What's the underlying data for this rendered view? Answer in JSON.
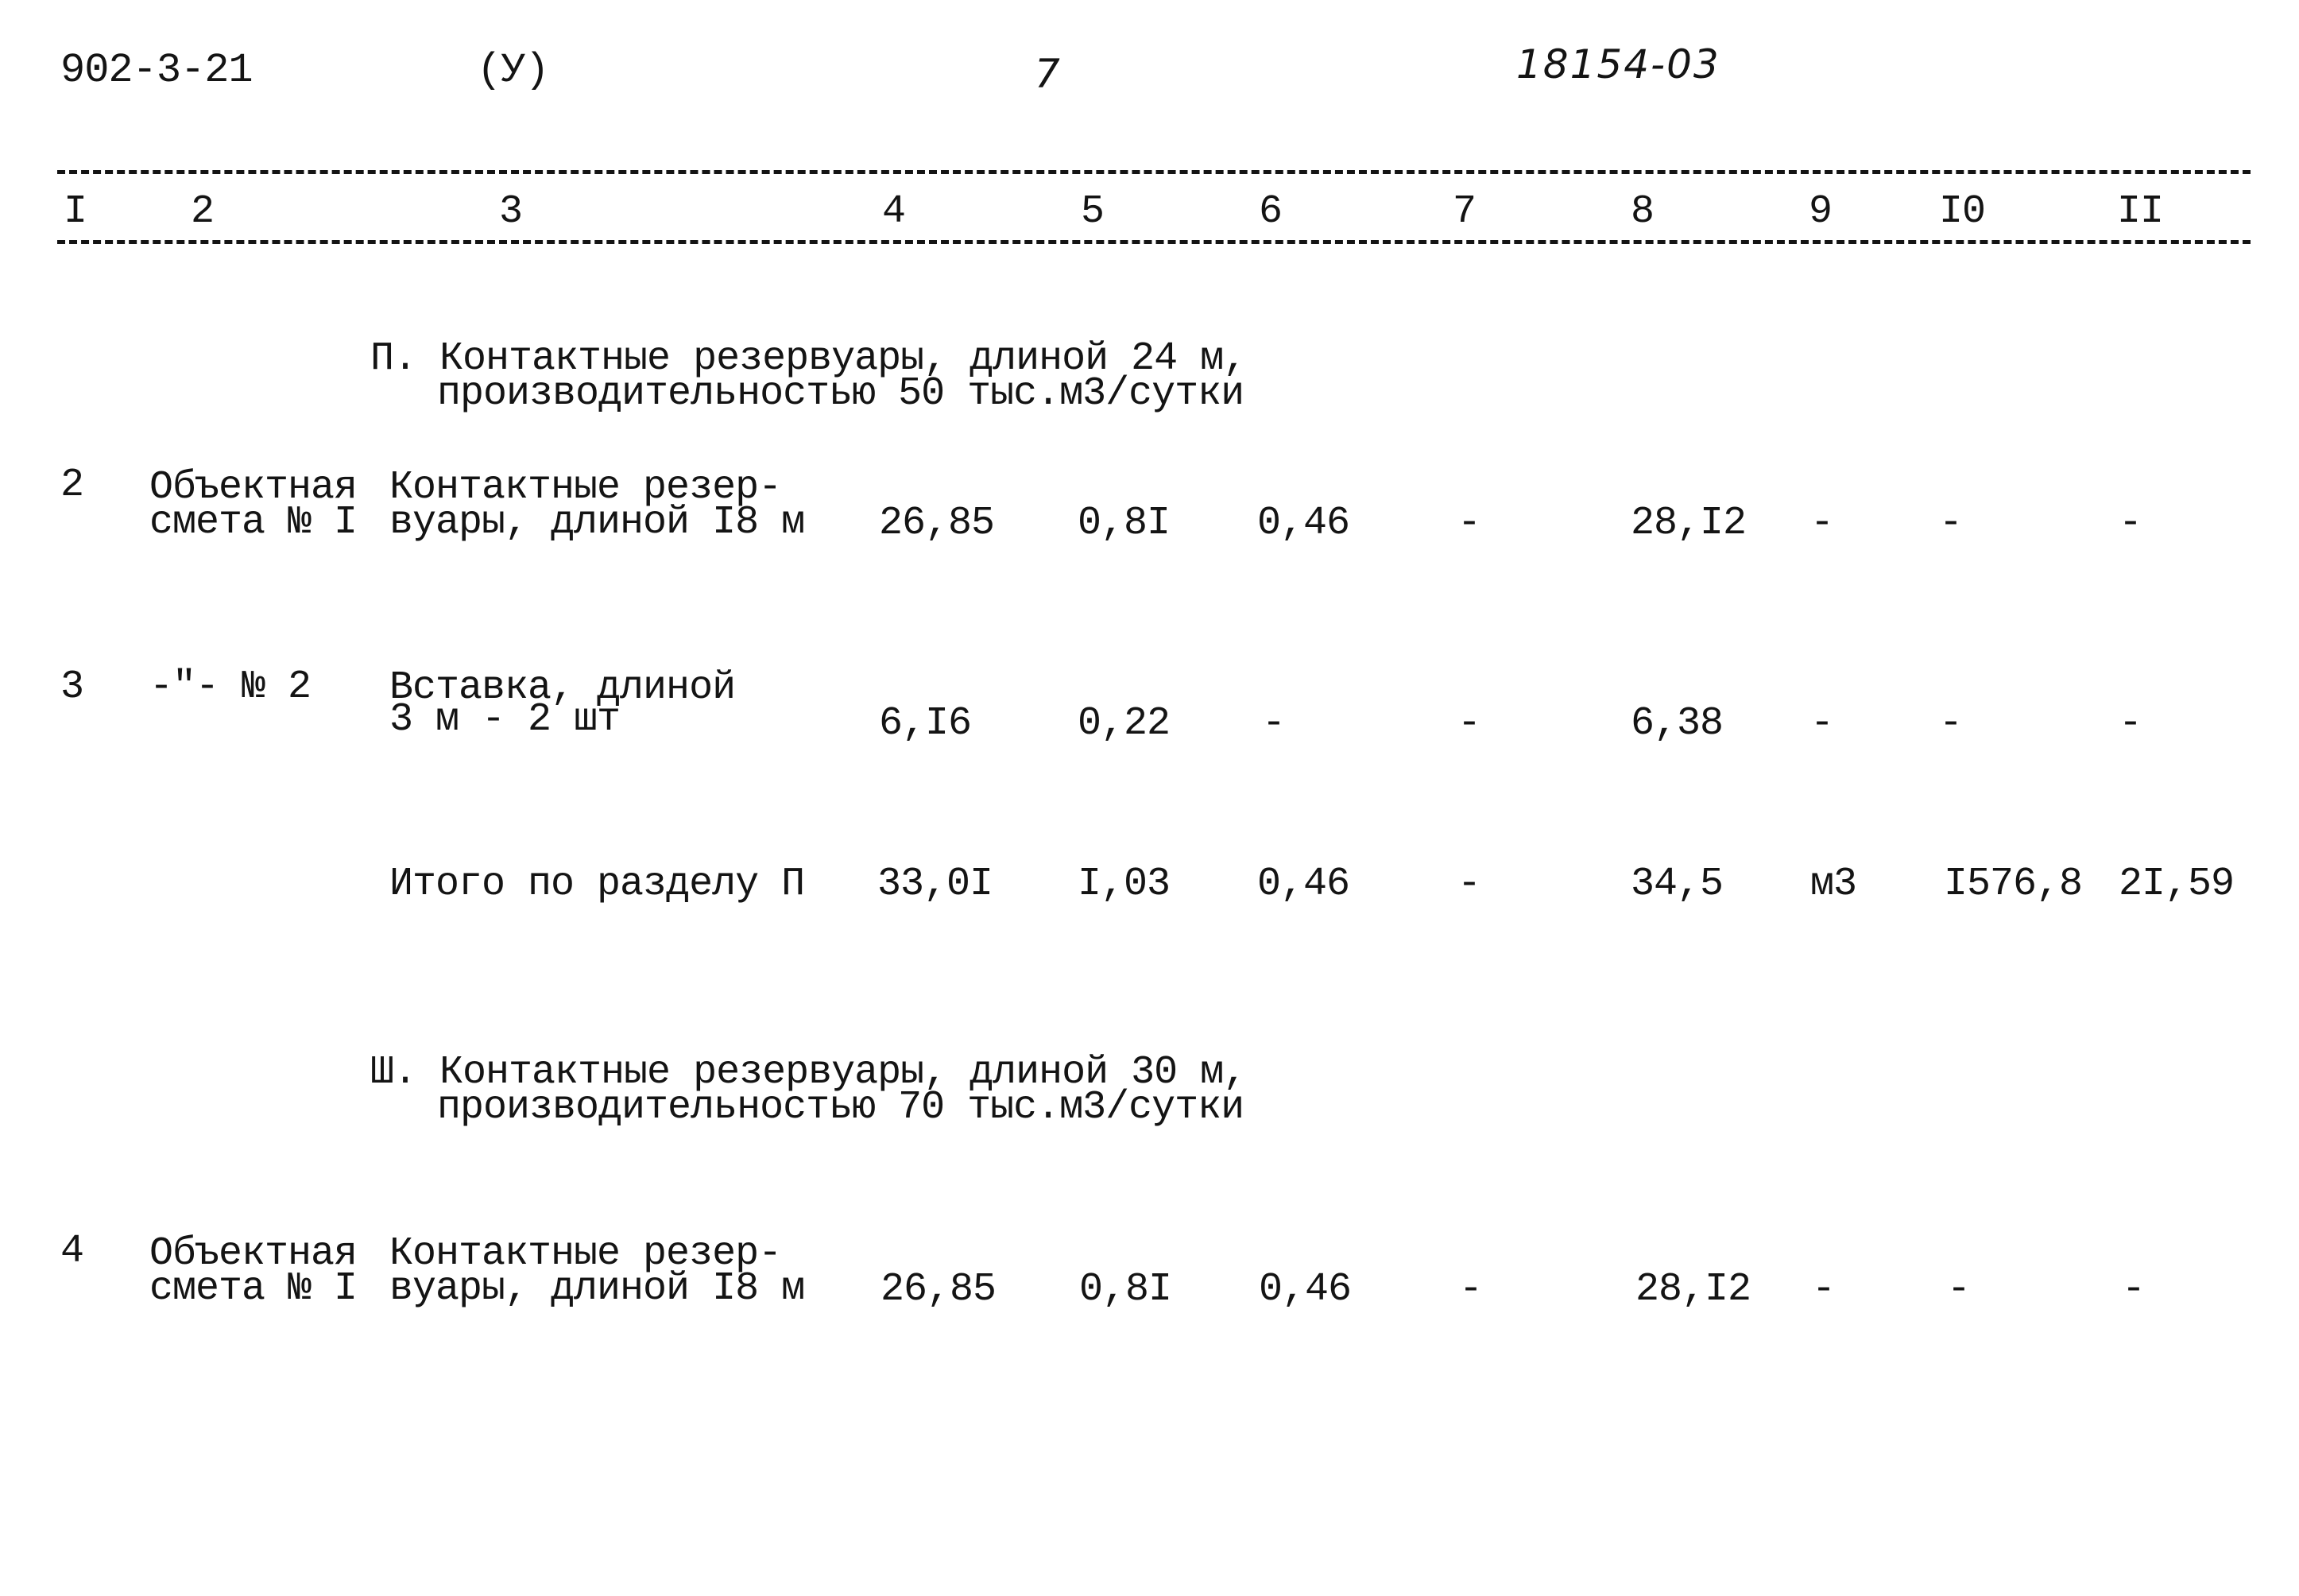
{
  "header": {
    "doc_code": "902-3-21",
    "mark": "(У)",
    "page_number": "7",
    "inventory_number": "18154-03"
  },
  "columns": [
    "I",
    "2",
    "3",
    "4",
    "5",
    "6",
    "7",
    "8",
    "9",
    "I0",
    "II"
  ],
  "sections": [
    {
      "title_line1": "П. Контактные резервуары, длиной 24 м,",
      "title_line2": "производительностью 50 тыс.м3/сутки"
    },
    {
      "title_line1": "Ш. Контактные резервуары, длиной 30 м,",
      "title_line2": "производительностью 70 тыс.м3/сутки"
    }
  ],
  "rows": [
    {
      "no": "2",
      "doc_line1": "Объектная",
      "doc_line2": "смета № I",
      "name_line1": "Контактные резер-",
      "name_line2": "вуары, длиной I8 м",
      "c4": "26,85",
      "c5": "0,8I",
      "c6": "0,46",
      "c7": "-",
      "c8": "28,I2",
      "c9": "-",
      "c10": "-",
      "c11": "-"
    },
    {
      "no": "3",
      "doc_line1": "-\"- № 2",
      "doc_line2": "",
      "name_line1": "Вставка, длиной",
      "name_line2": "3 м - 2 шт",
      "c4": "6,I6",
      "c5": "0,22",
      "c6": "-",
      "c7": "-",
      "c8": "6,38",
      "c9": "-",
      "c10": "-",
      "c11": "-"
    },
    {
      "no": "",
      "doc_line1": "",
      "doc_line2": "",
      "name_line1": "Итого по разделу П",
      "name_line2": "",
      "c4": "33,0I",
      "c5": "I,03",
      "c6": "0,46",
      "c7": "-",
      "c8": "34,5",
      "c9": "м3",
      "c10": "I576,8",
      "c11": "2I,59"
    },
    {
      "no": "4",
      "doc_line1": "Объектная",
      "doc_line2": "смета № I",
      "name_line1": "Контактные резер-",
      "name_line2": "вуары, длиной I8 м",
      "c4": "26,85",
      "c5": "0,8I",
      "c6": "0,46",
      "c7": "-",
      "c8": "28,I2",
      "c9": "-",
      "c10": "-",
      "c11": "-"
    }
  ]
}
